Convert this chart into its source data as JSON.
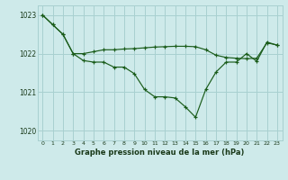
{
  "title": "Graphe pression niveau de la mer (hPa)",
  "bg_color": "#ceeaea",
  "grid_color": "#a8d0d0",
  "line_color": "#1a5c1a",
  "line1_y": [
    1023.0,
    1022.75,
    1022.5,
    1022.0,
    1022.0,
    1022.05,
    1022.1,
    1022.1,
    1022.12,
    1022.13,
    1022.15,
    1022.17,
    1022.18,
    1022.19,
    1022.19,
    1022.18,
    1022.1,
    1021.96,
    1021.9,
    1021.88,
    1021.87,
    1021.88,
    1022.28,
    1022.22
  ],
  "line2_y": [
    1023.0,
    1022.75,
    1022.5,
    1022.0,
    1021.82,
    1021.78,
    1021.78,
    1021.65,
    1021.65,
    1021.48,
    1021.07,
    1020.88,
    1020.88,
    1020.85,
    1020.62,
    1020.35,
    1021.07,
    1021.52,
    1021.78,
    1021.78,
    1022.0,
    1021.8,
    1022.3,
    1022.22
  ],
  "yticks": [
    1020,
    1021,
    1022,
    1023
  ],
  "xticks": [
    0,
    1,
    2,
    3,
    4,
    5,
    6,
    7,
    8,
    9,
    10,
    11,
    12,
    13,
    14,
    15,
    16,
    17,
    18,
    19,
    20,
    21,
    22,
    23
  ],
  "xlim": [
    -0.5,
    23.5
  ],
  "ylim": [
    1019.75,
    1023.25
  ]
}
